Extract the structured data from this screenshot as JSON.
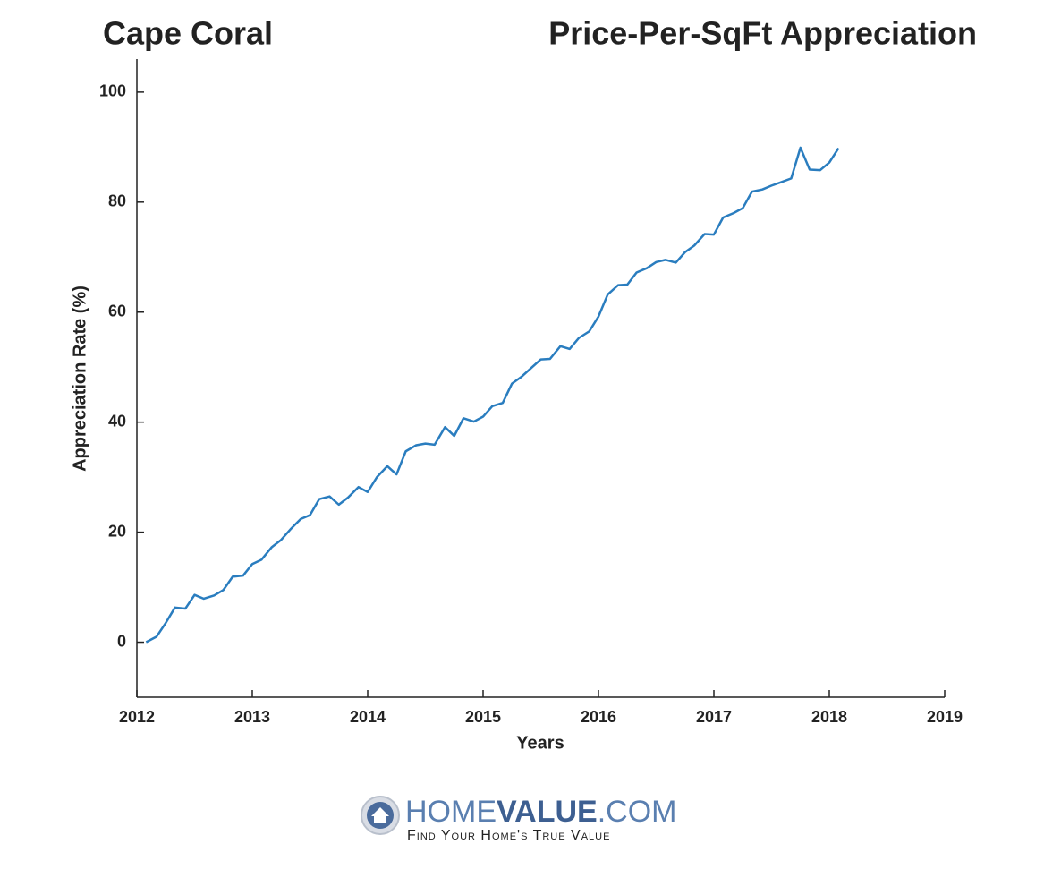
{
  "chart_data": {
    "type": "line",
    "location": "Cape Coral",
    "title": "Price-Per-SqFt Appreciation",
    "x_label": "Years",
    "y_label": "Appreciation Rate (%)",
    "color": "#2a7dbf",
    "x": [
      2012.08,
      2012.17,
      2012.25,
      2012.33,
      2012.42,
      2012.5,
      2012.58,
      2012.67,
      2012.75,
      2012.83,
      2012.92,
      2013.0,
      2013.08,
      2013.17,
      2013.25,
      2013.33,
      2013.42,
      2013.5,
      2013.58,
      2013.67,
      2013.75,
      2013.83,
      2013.92,
      2014.0,
      2014.08,
      2014.17,
      2014.25,
      2014.33,
      2014.42,
      2014.5,
      2014.58,
      2014.67,
      2014.75,
      2014.83,
      2014.92,
      2015.0,
      2015.08,
      2015.17,
      2015.25,
      2015.33,
      2015.42,
      2015.5,
      2015.58,
      2015.67,
      2015.75,
      2015.83,
      2015.92,
      2016.0,
      2016.08,
      2016.17,
      2016.25,
      2016.33,
      2016.42,
      2016.5,
      2016.58,
      2016.67,
      2016.75,
      2016.83,
      2016.92,
      2017.0,
      2017.08,
      2017.17,
      2017.25,
      2017.33,
      2017.42,
      2017.5,
      2017.58,
      2017.67,
      2017.75,
      2017.83,
      2017.92,
      2018.0,
      2018.08
    ],
    "values": [
      0,
      1,
      3.5,
      6.3,
      6.1,
      8.6,
      7.9,
      8.5,
      9.5,
      11.9,
      12.1,
      14.2,
      15,
      17.3,
      18.6,
      20.5,
      22.4,
      23.1,
      26,
      26.5,
      25,
      26.3,
      28.2,
      27.3,
      30,
      32,
      30.5,
      34.7,
      35.8,
      36.1,
      35.9,
      39.1,
      37.5,
      40.7,
      40.1,
      41,
      42.9,
      43.5,
      47,
      48.2,
      49.9,
      51.4,
      51.5,
      53.8,
      53.3,
      55.3,
      56.5,
      59.2,
      63.2,
      64.9,
      65,
      67.2,
      68,
      69.1,
      69.5,
      69,
      70.9,
      72.1,
      74.2,
      74.1,
      77.2,
      78,
      78.9,
      81.9,
      82.3,
      83,
      83.6,
      84.3,
      89.9,
      85.9,
      85.8,
      87.2,
      89.8
    ],
    "xlim": [
      2012,
      2019
    ],
    "xticks": [
      2012,
      2013,
      2014,
      2015,
      2016,
      2017,
      2018,
      2019
    ],
    "ylim": [
      -10,
      106
    ],
    "yticks": [
      0,
      20,
      40,
      60,
      80,
      100
    ]
  },
  "brand": {
    "parts": [
      "HOME",
      "VALUE",
      ".COM"
    ],
    "tagline": "Find Your Home's True Value"
  }
}
